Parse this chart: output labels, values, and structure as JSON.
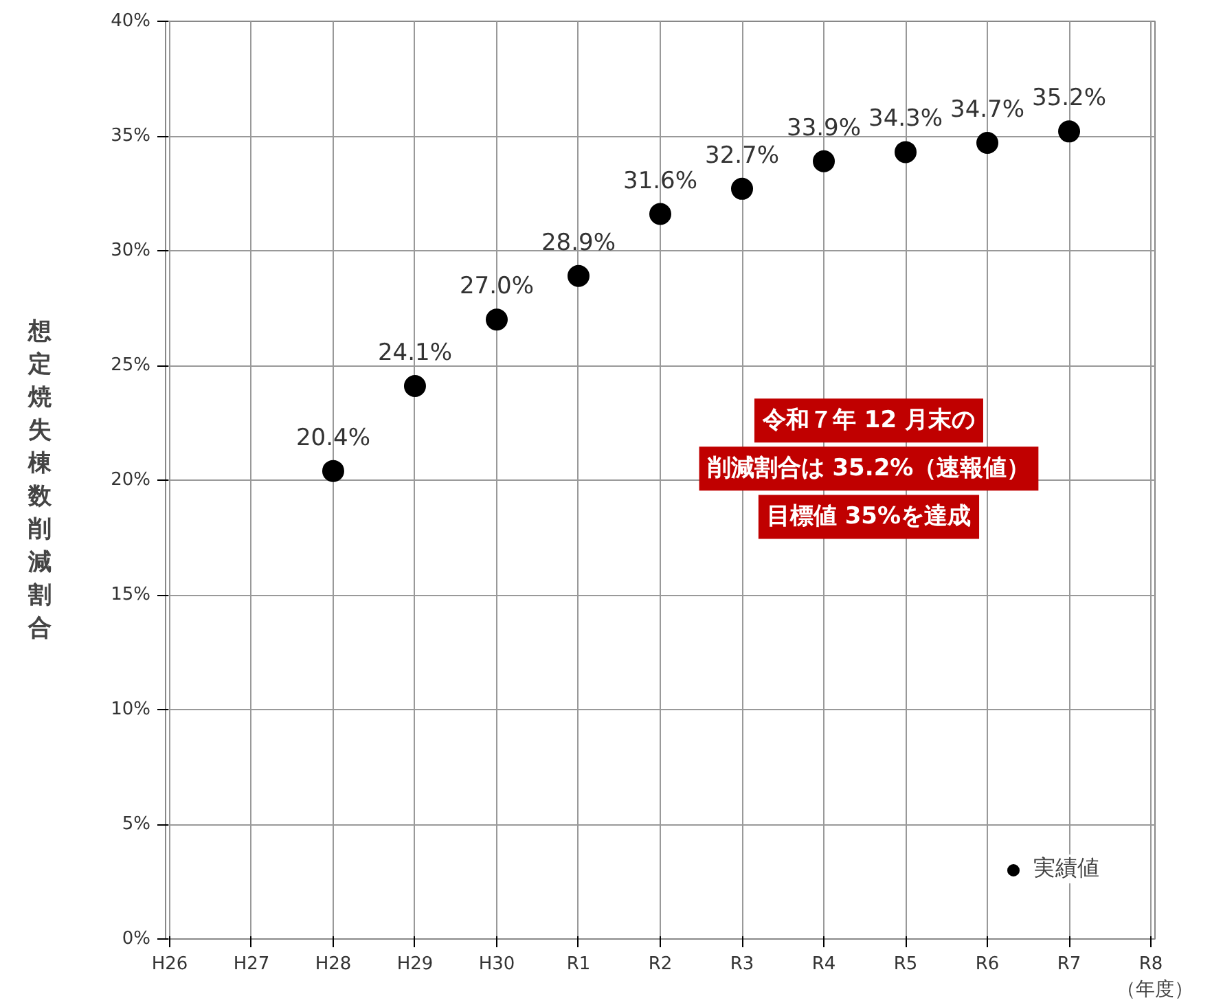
{
  "chart_data": {
    "type": "scatter",
    "ylabel": "想定焼失棟数削減割合",
    "xlabel": "（年度）",
    "categories": [
      "H26",
      "H27",
      "H28",
      "H29",
      "H30",
      "R1",
      "R2",
      "R3",
      "R4",
      "R5",
      "R6",
      "R7",
      "R8"
    ],
    "series": [
      {
        "name": "実績値",
        "color": "#000000",
        "values": [
          null,
          null,
          20.4,
          24.1,
          27.0,
          28.9,
          31.6,
          32.7,
          33.9,
          34.3,
          34.7,
          35.2,
          null
        ],
        "value_labels": [
          null,
          null,
          "20.4%",
          "24.1%",
          "27.0%",
          "28.9%",
          "31.6%",
          "32.7%",
          "33.9%",
          "34.3%",
          "34.7%",
          "35.2%",
          null
        ]
      }
    ],
    "ylim": [
      0,
      40
    ],
    "yticks": [
      {
        "value": 0,
        "label": "0%"
      },
      {
        "value": 5,
        "label": "5%"
      },
      {
        "value": 10,
        "label": "10%"
      },
      {
        "value": 15,
        "label": "15%"
      },
      {
        "value": 20,
        "label": "20%"
      },
      {
        "value": 25,
        "label": "25%"
      },
      {
        "value": 30,
        "label": "30%"
      },
      {
        "value": 35,
        "label": "35%"
      },
      {
        "value": 40,
        "label": "40%"
      }
    ],
    "annotations": [
      "令和７年 12 月末の",
      "削減割合は 35.2%（速報値）",
      "目標値 35%を達成"
    ],
    "grid": true,
    "legend": "bottom right",
    "marker": "circle"
  }
}
